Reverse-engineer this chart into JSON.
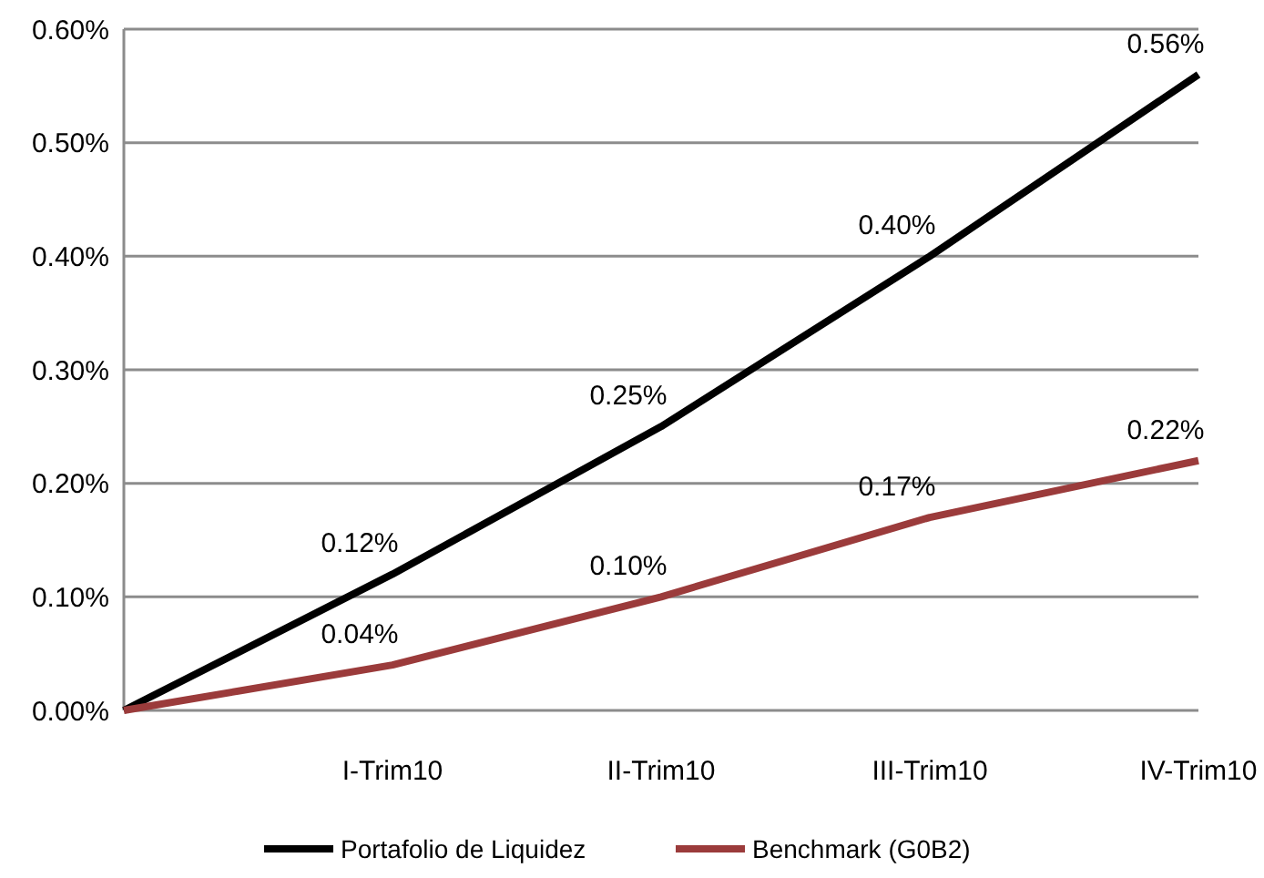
{
  "chart_data": {
    "type": "line",
    "categories": [
      null,
      "I-Trim10",
      "II-Trim10",
      "III-Trim10",
      "IV-Trim10"
    ],
    "series": [
      {
        "name": "Portafolio de Liquidez",
        "color": "#000000",
        "values": [
          0,
          0.12,
          0.25,
          0.4,
          0.56
        ],
        "value_labels": [
          null,
          "0.12%",
          "0.25%",
          "0.40%",
          "0.56%"
        ]
      },
      {
        "name": "Benchmark (G0B2)",
        "color": "#9b3b3b",
        "values": [
          0,
          0.04,
          0.1,
          0.17,
          0.22
        ],
        "value_labels": [
          null,
          "0.04%",
          "0.10%",
          "0.17%",
          "0.22%"
        ]
      }
    ],
    "ylim": [
      0,
      0.6
    ],
    "yticks": [
      {
        "value": 0,
        "label": "0.00%"
      },
      {
        "value": 0.1,
        "label": "0.10%"
      },
      {
        "value": 0.2,
        "label": "0.20%"
      },
      {
        "value": 0.3,
        "label": "0.30%"
      },
      {
        "value": 0.4,
        "label": "0.40%"
      },
      {
        "value": 0.5,
        "label": "0.50%"
      },
      {
        "value": 0.6,
        "label": "0.60%"
      }
    ],
    "grid": "y",
    "legend": "bottom",
    "marker": "none",
    "line_style": "solid"
  }
}
